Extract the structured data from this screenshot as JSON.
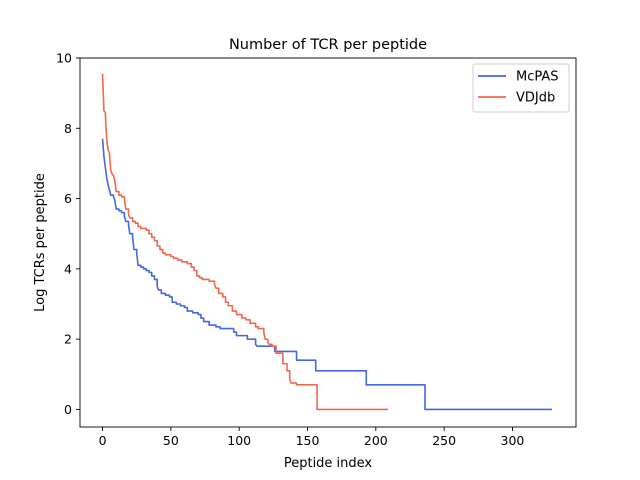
{
  "chart_data": {
    "type": "line",
    "title": "Number of TCR per peptide",
    "xlabel": "Peptide index",
    "ylabel": "Log TCRs per peptide",
    "xlim": [
      -16.5,
      346.5
    ],
    "ylim": [
      -0.5,
      10
    ],
    "x_ticks": [
      0,
      50,
      100,
      150,
      200,
      250,
      300
    ],
    "y_ticks": [
      0,
      2,
      4,
      6,
      8,
      10
    ],
    "grid": false,
    "legend": {
      "position": "top-right",
      "entries": [
        "McPAS",
        "VDJdb"
      ]
    },
    "series": [
      {
        "name": "McPAS",
        "color": "#4169e1",
        "points": [
          [
            0,
            7.7
          ],
          [
            1,
            7.2
          ],
          [
            2,
            6.9
          ],
          [
            3,
            6.6
          ],
          [
            4,
            6.4
          ],
          [
            5,
            6.25
          ],
          [
            6,
            6.1
          ],
          [
            8,
            6.05
          ],
          [
            9,
            5.95
          ],
          [
            10,
            5.7
          ],
          [
            12,
            5.65
          ],
          [
            14,
            5.6
          ],
          [
            16,
            5.5
          ],
          [
            17,
            5.35
          ],
          [
            19,
            5.25
          ],
          [
            20,
            5.0
          ],
          [
            22,
            4.9
          ],
          [
            23,
            4.55
          ],
          [
            25,
            4.45
          ],
          [
            26,
            4.1
          ],
          [
            28,
            4.05
          ],
          [
            30,
            4.0
          ],
          [
            32,
            3.95
          ],
          [
            34,
            3.9
          ],
          [
            36,
            3.8
          ],
          [
            38,
            3.7
          ],
          [
            40,
            3.5
          ],
          [
            41,
            3.4
          ],
          [
            43,
            3.3
          ],
          [
            46,
            3.25
          ],
          [
            49,
            3.2
          ],
          [
            51,
            3.05
          ],
          [
            54,
            3.0
          ],
          [
            57,
            2.95
          ],
          [
            60,
            2.9
          ],
          [
            62,
            2.8
          ],
          [
            66,
            2.75
          ],
          [
            70,
            2.7
          ],
          [
            72,
            2.6
          ],
          [
            74,
            2.5
          ],
          [
            78,
            2.4
          ],
          [
            83,
            2.35
          ],
          [
            86,
            2.3
          ],
          [
            96,
            2.2
          ],
          [
            98,
            2.1
          ],
          [
            106,
            2.0
          ],
          [
            112,
            1.85
          ],
          [
            113,
            1.8
          ],
          [
            126,
            1.65
          ],
          [
            142,
            1.4
          ],
          [
            156,
            1.1
          ],
          [
            193,
            0.7
          ],
          [
            236,
            0.0
          ],
          [
            329,
            0.0
          ]
        ]
      },
      {
        "name": "VDJdb",
        "color": "#f5674b",
        "points": [
          [
            0,
            9.55
          ],
          [
            1,
            8.5
          ],
          [
            2,
            8.45
          ],
          [
            3,
            7.7
          ],
          [
            4,
            7.4
          ],
          [
            5,
            7.3
          ],
          [
            6,
            6.8
          ],
          [
            7,
            6.7
          ],
          [
            8,
            6.65
          ],
          [
            9,
            6.5
          ],
          [
            10,
            6.2
          ],
          [
            12,
            6.1
          ],
          [
            14,
            6.05
          ],
          [
            16,
            6.0
          ],
          [
            17,
            5.7
          ],
          [
            19,
            5.55
          ],
          [
            20,
            5.45
          ],
          [
            22,
            5.35
          ],
          [
            24,
            5.3
          ],
          [
            26,
            5.2
          ],
          [
            28,
            5.15
          ],
          [
            32,
            5.1
          ],
          [
            34,
            5.0
          ],
          [
            36,
            4.9
          ],
          [
            38,
            4.8
          ],
          [
            40,
            4.65
          ],
          [
            42,
            4.55
          ],
          [
            44,
            4.45
          ],
          [
            46,
            4.4
          ],
          [
            50,
            4.35
          ],
          [
            52,
            4.3
          ],
          [
            55,
            4.25
          ],
          [
            58,
            4.2
          ],
          [
            62,
            4.15
          ],
          [
            65,
            4.05
          ],
          [
            67,
            3.95
          ],
          [
            69,
            3.8
          ],
          [
            71,
            3.75
          ],
          [
            73,
            3.7
          ],
          [
            78,
            3.65
          ],
          [
            82,
            3.55
          ],
          [
            83,
            3.45
          ],
          [
            85,
            3.3
          ],
          [
            88,
            3.2
          ],
          [
            90,
            3.05
          ],
          [
            92,
            2.95
          ],
          [
            95,
            2.8
          ],
          [
            98,
            2.7
          ],
          [
            102,
            2.6
          ],
          [
            105,
            2.55
          ],
          [
            108,
            2.45
          ],
          [
            112,
            2.35
          ],
          [
            114,
            2.3
          ],
          [
            118,
            2.2
          ],
          [
            119,
            2.0
          ],
          [
            121,
            1.9
          ],
          [
            122,
            1.85
          ],
          [
            124,
            1.8
          ],
          [
            127,
            1.6
          ],
          [
            132,
            1.3
          ],
          [
            135,
            1.1
          ],
          [
            137,
            0.85
          ],
          [
            138,
            0.75
          ],
          [
            142,
            0.7
          ],
          [
            157,
            0.0
          ],
          [
            209,
            0.0
          ]
        ]
      }
    ]
  }
}
